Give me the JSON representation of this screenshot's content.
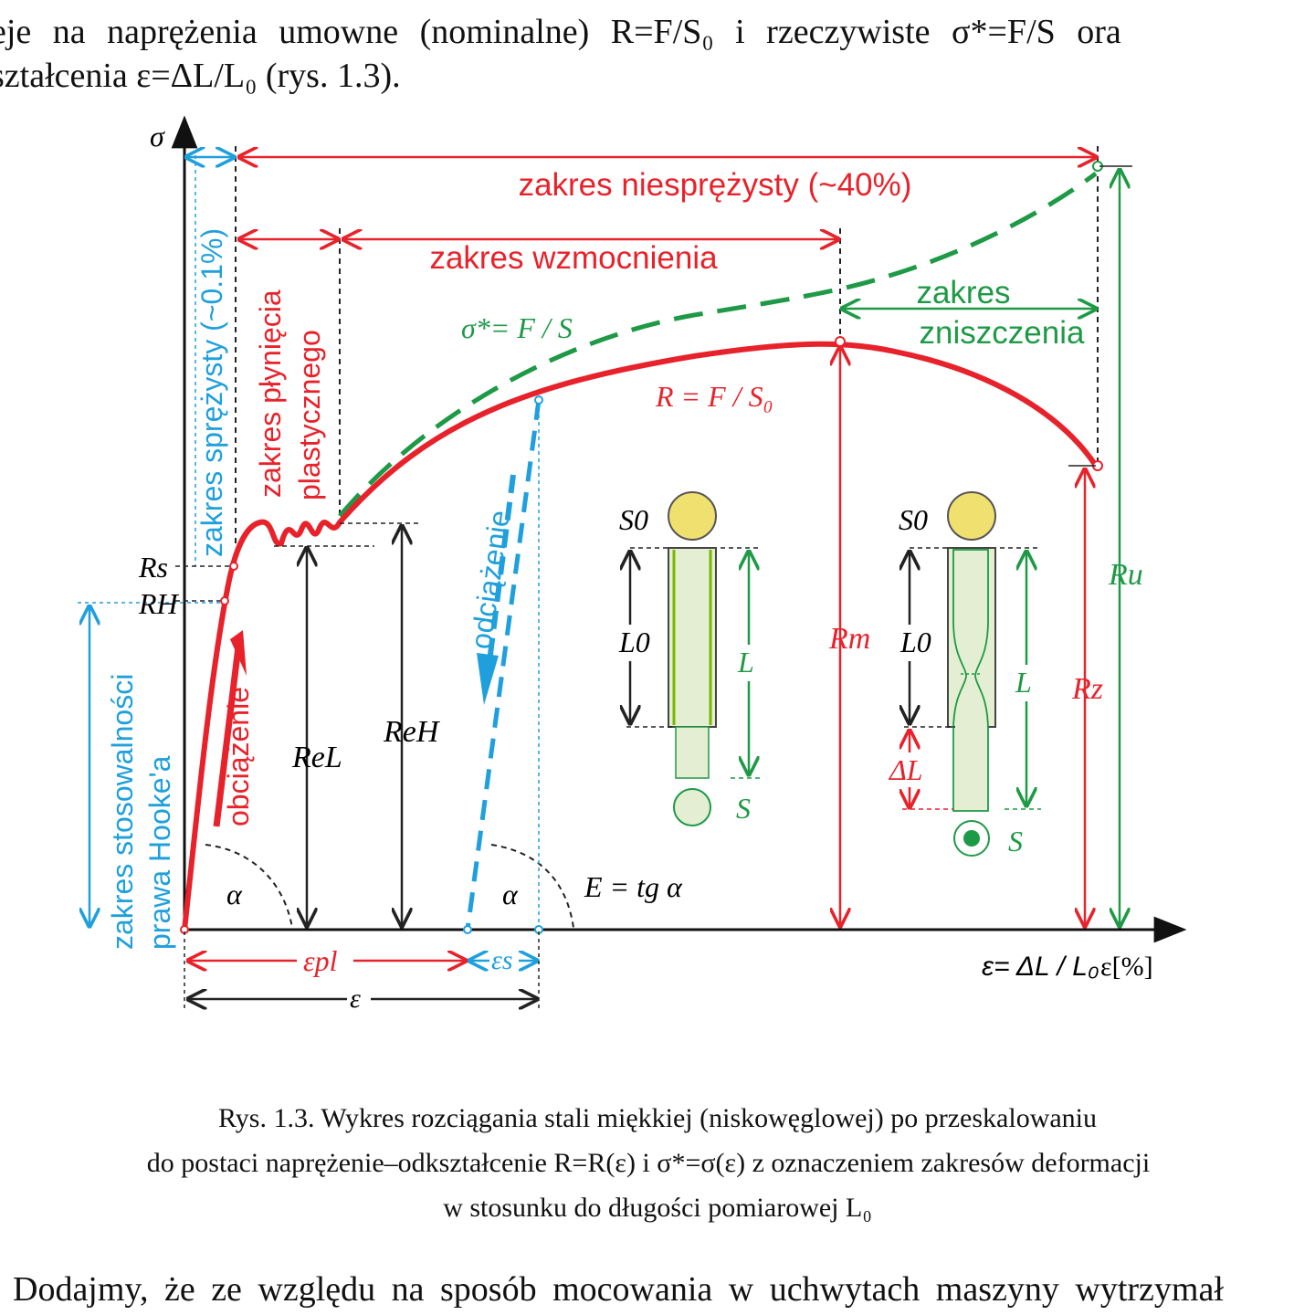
{
  "text_above": {
    "line1": "eje na naprężenia umowne (nominalne) R=F/S₀ i rzeczywiste σ*=F/S ora",
    "line2": "ształcenia ε=ΔL/L₀ (rys. 1.3)."
  },
  "figure": {
    "axis_y": "σ",
    "axis_x": "ε[%]",
    "strain_formula": "ε= ΔL / L₀",
    "zones": {
      "inelastic": "zakres niesprężysty (~40%)",
      "hardening": "zakres wzmocnienia",
      "failure_line1": "zakres",
      "failure_line2": "zniszczenia",
      "elastic": "zakres sprężysty (~0.1%)",
      "yield_line1": "zakres płynięcia",
      "yield_line2": "plastycznego",
      "hooke_line1": "zakres stosowalności",
      "hooke_line2": "prawa Hooke'a"
    },
    "process": {
      "loading": "obciążenie",
      "unloading": "odciążenie"
    },
    "formulas": {
      "true_stress": "σ*= F / S",
      "nominal_stress": "R = F / S₀",
      "modulus": "E = tg α"
    },
    "labels": {
      "Rs": "Rs",
      "RH": "RH",
      "ReL": "ReL",
      "ReH": "ReH",
      "Rm": "Rm",
      "Ru": "Ru",
      "Rz": "Rz",
      "alpha": "α",
      "eps_pl": "εpl",
      "eps_s": "εs",
      "eps": "ε",
      "S0": "S0",
      "L0": "L0",
      "L": "L",
      "S": "S",
      "dL": "ΔL"
    },
    "colors": {
      "red": "#e8222b",
      "green": "#1e9a46",
      "blue": "#1fa0dc",
      "specimen_fill": "#e4eed2",
      "circle_yellow": "#f0e070"
    }
  },
  "caption": {
    "line1": "Rys. 1.3. Wykres rozciągania stali miękkiej (niskowęglowej) po przeskalowaniu",
    "line2": "do postaci naprężenie–odkształcenie R=R(ε) i σ*=σ(ε) z oznaczeniem zakresów deformacji",
    "line3": "w stosunku do długości pomiarowej L₀"
  },
  "text_below": "Dodajmy, że ze względu na sposób mocowania w uchwytach maszyny wytrzymał"
}
